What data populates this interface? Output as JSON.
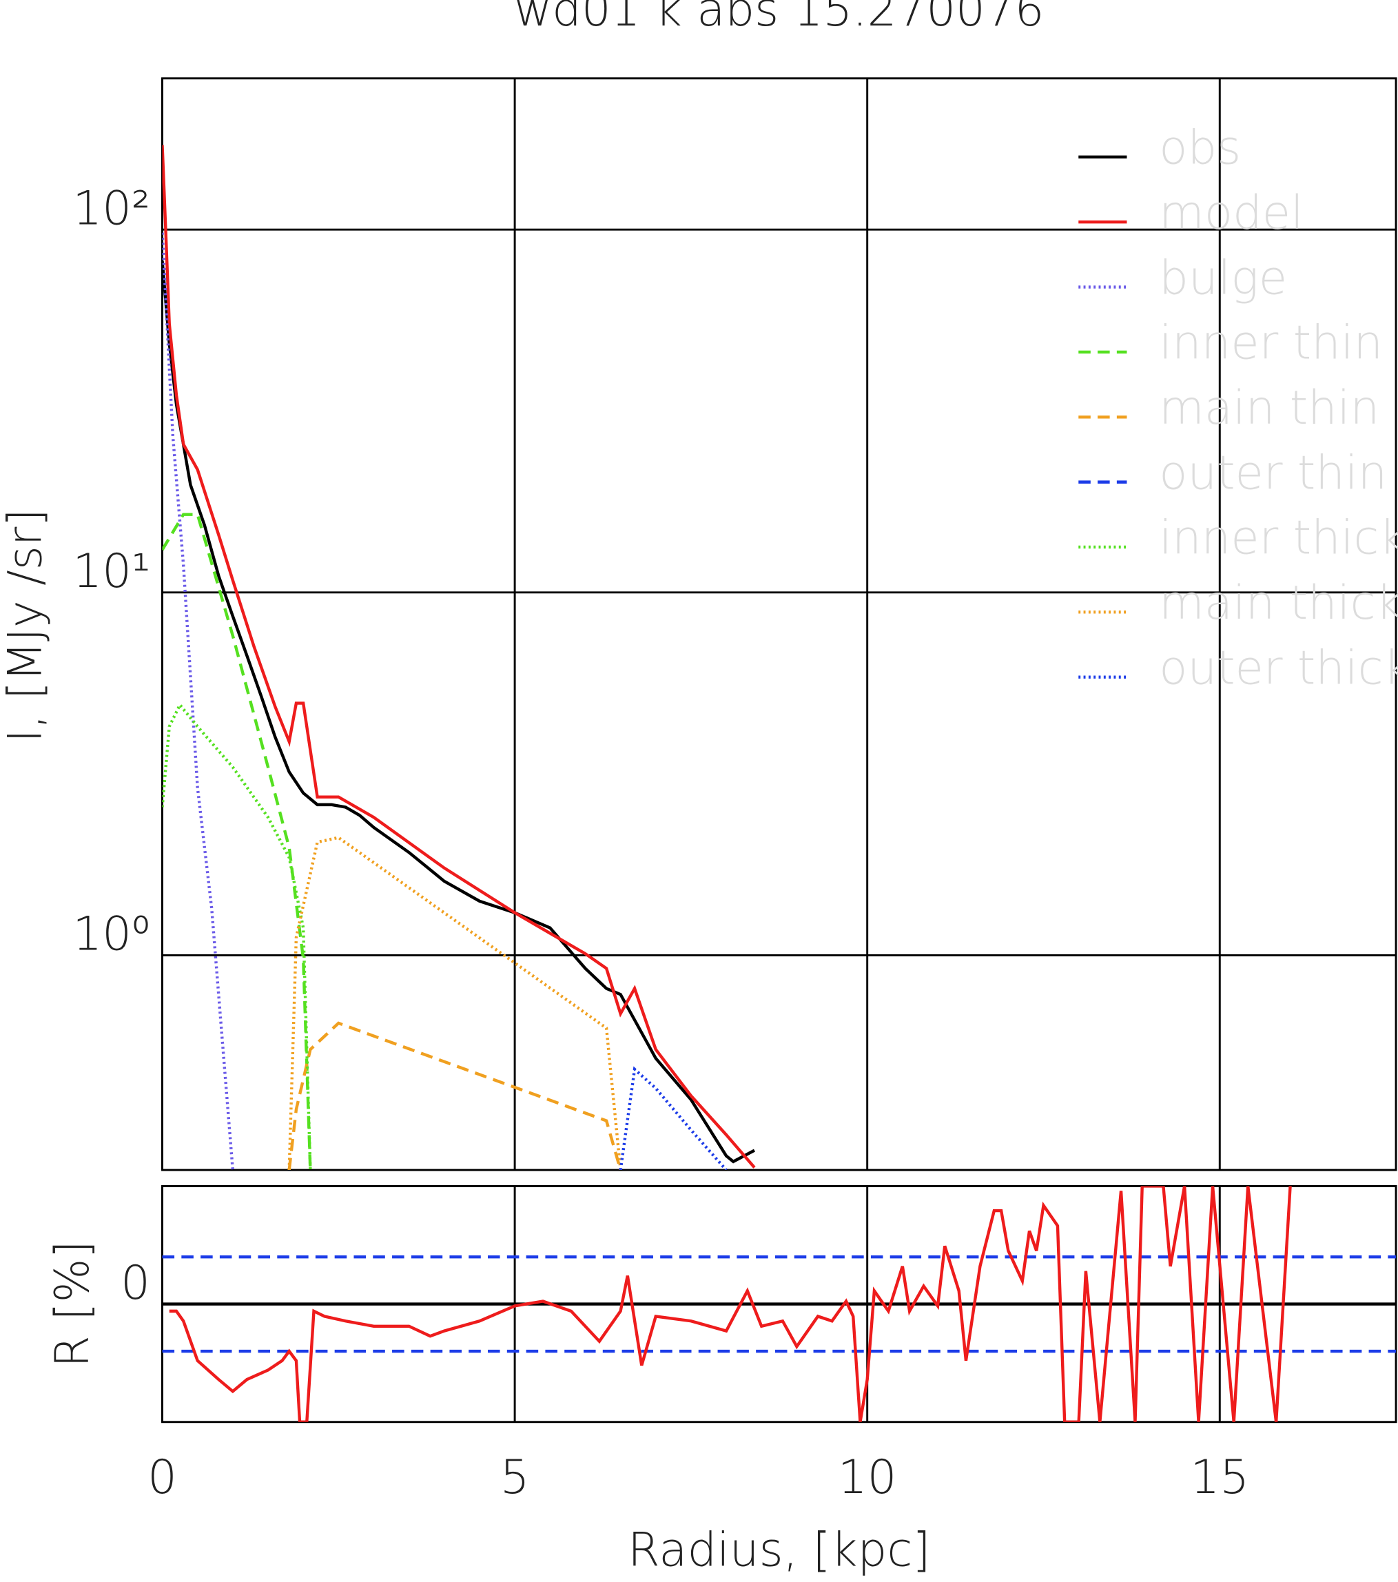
{
  "chart_data": [
    {
      "type": "line",
      "title": "wd01 k abs 15.270076",
      "y_label": "I, [MJy /sr]",
      "xlim": [
        0,
        17.5
      ],
      "ylim": [
        0.256,
        261
      ],
      "log_y": true,
      "grid": true,
      "xticks": [
        0,
        5,
        10,
        15
      ],
      "yticks": [
        {
          "value": 1,
          "label": "10⁰"
        },
        {
          "value": 10,
          "label": "10¹"
        },
        {
          "value": 100,
          "label": "10²"
        }
      ],
      "legend": "upper right",
      "series": [
        {
          "name": "obs",
          "color": "#000000",
          "linestyle": "solid",
          "x": [
            0,
            0.1,
            0.2,
            0.4,
            0.6,
            0.8,
            1.0,
            1.2,
            1.4,
            1.6,
            1.8,
            2.0,
            2.2,
            2.4,
            2.6,
            2.8,
            3.0,
            3.5,
            4.0,
            4.5,
            5.0,
            5.5,
            6.0,
            6.3,
            6.5,
            7.0,
            7.5,
            8.0,
            8.1,
            8.4
          ],
          "values": [
            82,
            48.5,
            33,
            19.8,
            15.3,
            11.1,
            8.6,
            6.7,
            5.2,
            4.0,
            3.2,
            2.8,
            2.6,
            2.6,
            2.56,
            2.43,
            2.25,
            1.92,
            1.6,
            1.41,
            1.31,
            1.19,
            0.92,
            0.81,
            0.78,
            0.52,
            0.4,
            0.28,
            0.27,
            0.29
          ]
        },
        {
          "name": "model",
          "color": "#ee1c1c",
          "linestyle": "solid",
          "x": [
            0,
            0.05,
            0.1,
            0.2,
            0.3,
            0.5,
            0.8,
            1.0,
            1.3,
            1.6,
            1.8,
            1.9,
            2.0,
            2.2,
            2.5,
            3.0,
            4.0,
            5.0,
            5.5,
            6.0,
            6.3,
            6.5,
            6.7,
            7.0,
            7.5,
            8.0,
            8.4
          ],
          "values": [
            171,
            98,
            55,
            35,
            25.6,
            21.8,
            14.4,
            10.8,
            7.1,
            4.85,
            3.88,
            4.95,
            4.95,
            2.73,
            2.73,
            2.4,
            1.74,
            1.31,
            1.15,
            1.01,
            0.92,
            0.69,
            0.81,
            0.55,
            0.41,
            0.32,
            0.26
          ]
        },
        {
          "name": "bulge",
          "color": "#6a5ae8",
          "linestyle": "dotted",
          "x": [
            0,
            0.15,
            0.3,
            0.5,
            0.7,
            1.0
          ],
          "values": [
            98,
            27,
            11.9,
            2.9,
            1.35,
            0.256
          ]
        },
        {
          "name": "inner thin",
          "color": "#55e020",
          "linestyle": "dashed",
          "x": [
            0,
            0.3,
            0.5,
            1.0,
            1.5,
            1.8,
            2.0,
            2.1
          ],
          "values": [
            13.1,
            16.4,
            16.4,
            7.6,
            3.3,
            1.98,
            0.98,
            0.256
          ]
        },
        {
          "name": "main thin",
          "color": "#f0a020",
          "linestyle": "dashed",
          "x": [
            1.8,
            1.9,
            2.1,
            2.5,
            6.3,
            6.5
          ],
          "values": [
            0.256,
            0.376,
            0.55,
            0.65,
            0.35,
            0.256
          ]
        },
        {
          "name": "outer thin",
          "color": "#1c3ce8",
          "linestyle": "dashed",
          "x": [],
          "values": []
        },
        {
          "name": "inner thick",
          "color": "#55e020",
          "linestyle": "dotted",
          "x": [
            0,
            0.1,
            0.25,
            0.5,
            1.0,
            1.5,
            1.8,
            2.0,
            2.1
          ],
          "values": [
            2.56,
            4.27,
            4.9,
            4.27,
            3.3,
            2.4,
            1.86,
            1.19,
            0.256
          ]
        },
        {
          "name": "main thick",
          "color": "#f0a020",
          "linestyle": "dotted",
          "x": [
            1.8,
            1.9,
            2.2,
            2.5,
            6.3,
            6.5
          ],
          "values": [
            0.256,
            1.12,
            2.05,
            2.11,
            0.63,
            0.256
          ]
        },
        {
          "name": "outer thick",
          "color": "#1c3ce8",
          "linestyle": "dotted",
          "x": [
            6.5,
            6.7,
            7.0,
            7.5,
            8.0
          ],
          "values": [
            0.256,
            0.485,
            0.43,
            0.33,
            0.256
          ]
        }
      ]
    },
    {
      "type": "residual",
      "y_label": "R [%]",
      "x_label": "Radius, [kpc]",
      "xlim": [
        0,
        17.5
      ],
      "ylim": [
        -25,
        25
      ],
      "xticks": [
        0,
        5,
        10,
        15
      ],
      "yticks": [
        0
      ],
      "grid": true,
      "bands": [
        -10,
        10
      ],
      "band_color": "#1c3ce8",
      "series": [
        {
          "color": "#ee1c1c",
          "x": [
            0.1,
            0.2,
            0.3,
            0.5,
            0.8,
            1.0,
            1.2,
            1.5,
            1.7,
            1.8,
            1.9,
            1.95,
            2.05,
            2.15,
            2.3,
            2.6,
            3.0,
            3.5,
            3.8,
            4.0,
            4.5,
            5.0,
            5.4,
            5.8,
            6.2,
            6.5,
            6.6,
            6.8,
            7.0,
            7.5,
            8.0,
            8.3,
            8.5,
            8.8,
            9.0,
            9.3,
            9.5,
            9.7,
            9.8,
            9.9,
            10.0,
            10.1,
            10.3,
            10.5,
            10.6,
            10.8,
            11.0,
            11.1,
            11.3,
            11.4,
            11.6,
            11.8,
            11.9,
            12.0,
            12.2,
            12.3,
            12.4,
            12.5,
            12.7,
            12.8,
            13.0,
            13.1,
            13.3,
            13.6,
            13.8,
            13.9,
            14.2,
            14.3,
            14.5,
            14.7,
            14.9,
            15.2,
            15.4,
            15.8,
            16.0
          ],
          "values": [
            -1.5,
            -1.5,
            -3.6,
            -12,
            -16,
            -18.5,
            -16,
            -14,
            -12,
            -10,
            -12,
            -25,
            -25,
            -1.5,
            -2.6,
            -3.6,
            -4.7,
            -4.7,
            -6.8,
            -5.7,
            -3.6,
            -0.4,
            0.6,
            -1.5,
            -7.9,
            -1.5,
            6,
            -13,
            -2.6,
            -3.6,
            -5.7,
            2.8,
            -4.7,
            -3.6,
            -9,
            -2.6,
            -3.6,
            0.6,
            -2.6,
            -25,
            -16,
            2.8,
            -1.5,
            8,
            -1.5,
            3.8,
            -0.4,
            12.3,
            2.8,
            -12,
            8,
            19.8,
            19.8,
            11.3,
            4.9,
            15.5,
            11.3,
            20.9,
            16.6,
            -25,
            -25,
            7,
            -25,
            24,
            -25,
            25,
            25,
            8,
            25,
            -25,
            25,
            -25,
            25,
            -25,
            25
          ]
        }
      ]
    }
  ]
}
